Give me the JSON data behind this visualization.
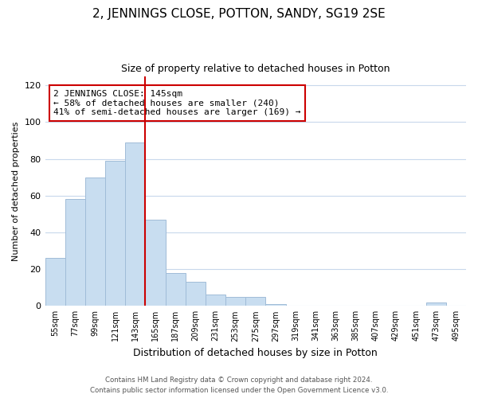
{
  "title": "2, JENNINGS CLOSE, POTTON, SANDY, SG19 2SE",
  "subtitle": "Size of property relative to detached houses in Potton",
  "xlabel": "Distribution of detached houses by size in Potton",
  "ylabel": "Number of detached properties",
  "bar_color": "#c8ddf0",
  "bar_edge_color": "#a0bcd8",
  "bins": [
    "55sqm",
    "77sqm",
    "99sqm",
    "121sqm",
    "143sqm",
    "165sqm",
    "187sqm",
    "209sqm",
    "231sqm",
    "253sqm",
    "275sqm",
    "297sqm",
    "319sqm",
    "341sqm",
    "363sqm",
    "385sqm",
    "407sqm",
    "429sqm",
    "451sqm",
    "473sqm",
    "495sqm"
  ],
  "values": [
    26,
    58,
    70,
    79,
    89,
    47,
    18,
    13,
    6,
    5,
    5,
    1,
    0,
    0,
    0,
    0,
    0,
    0,
    0,
    2,
    0
  ],
  "vline_x_index": 4,
  "annotation_title": "2 JENNINGS CLOSE: 145sqm",
  "annotation_line1": "← 58% of detached houses are smaller (240)",
  "annotation_line2": "41% of semi-detached houses are larger (169) →",
  "ylim": [
    0,
    125
  ],
  "yticks": [
    0,
    20,
    40,
    60,
    80,
    100,
    120
  ],
  "footer1": "Contains HM Land Registry data © Crown copyright and database right 2024.",
  "footer2": "Contains public sector information licensed under the Open Government Licence v3.0.",
  "vline_color": "#cc0000",
  "annotation_box_edge": "#cc0000",
  "background_color": "#ffffff",
  "grid_color": "#c8d8ec"
}
